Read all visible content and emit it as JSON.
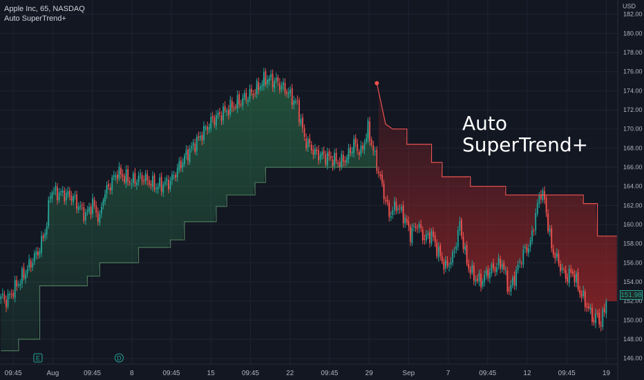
{
  "legend": {
    "symbol_line": "Apple Inc, 65, NASDAQ",
    "indicator": "Auto SuperTrend+"
  },
  "overlay_title": {
    "line1": "Auto",
    "line2": "SuperTrend+"
  },
  "price_axis": {
    "currency": "USD",
    "last_price_label": "151.98"
  },
  "colors": {
    "background": "#131722",
    "grid": "#1f2433",
    "up": "#26a69a",
    "down": "#ef5350",
    "st_up_line": "#4c7a5a",
    "st_down_line": "#ef5350",
    "axis_text": "#b2b5be"
  },
  "chart_data": {
    "type": "candlestick",
    "title": "Apple Inc, 65, NASDAQ",
    "indicator": "Auto SuperTrend+",
    "y_ticks": [
      146,
      148,
      150,
      152,
      154,
      156,
      158,
      160,
      162,
      164,
      166,
      168,
      170,
      172,
      174,
      176,
      178,
      180,
      182
    ],
    "y_tick_labels": [
      "146.00",
      "148.00",
      "150.00",
      "152.00",
      "154.00",
      "156.00",
      "158.00",
      "160.00",
      "162.00",
      "164.00",
      "166.00",
      "168.00",
      "170.00",
      "172.00",
      "174.00",
      "176.00",
      "178.00",
      "180.00",
      "182.00"
    ],
    "ylim": [
      145.4,
      183.5
    ],
    "x_tick_labels": [
      "09:45",
      "Aug",
      "09:45",
      "8",
      "09:45",
      "15",
      "09:45",
      "22",
      "09:45",
      "29",
      "Sep",
      "7",
      "09:45",
      "12",
      "09:45",
      "19"
    ],
    "event_markers": [
      "E",
      "D"
    ],
    "last_price": 151.98,
    "grid": true,
    "close_anchors": [
      [
        0,
        152.5
      ],
      [
        3,
        152.0
      ],
      [
        12,
        154.5
      ],
      [
        22,
        157.5
      ],
      [
        26,
        160.0
      ],
      [
        28,
        163.5
      ],
      [
        40,
        163.0
      ],
      [
        48,
        161.0
      ],
      [
        52,
        162.2
      ],
      [
        56,
        160.5
      ],
      [
        58,
        163.0
      ],
      [
        66,
        165.5
      ],
      [
        74,
        164.5
      ],
      [
        80,
        165.0
      ],
      [
        88,
        164.0
      ],
      [
        96,
        164.5
      ],
      [
        104,
        167.0
      ],
      [
        112,
        169.0
      ],
      [
        120,
        171.0
      ],
      [
        128,
        172.0
      ],
      [
        136,
        173.0
      ],
      [
        144,
        174.0
      ],
      [
        150,
        175.3
      ],
      [
        156,
        175.0
      ],
      [
        162,
        174.0
      ],
      [
        168,
        172.5
      ],
      [
        172,
        169.0
      ],
      [
        178,
        167.5
      ],
      [
        186,
        167.0
      ],
      [
        192,
        166.5
      ],
      [
        196,
        167.0
      ],
      [
        200,
        168.5
      ],
      [
        204,
        167.5
      ],
      [
        208,
        170.0
      ],
      [
        212,
        167.0
      ],
      [
        216,
        164.0
      ],
      [
        220,
        161.0
      ],
      [
        224,
        162.0
      ],
      [
        228,
        161.0
      ],
      [
        232,
        159.0
      ],
      [
        236,
        160.0
      ],
      [
        240,
        158.5
      ],
      [
        244,
        159.0
      ],
      [
        248,
        157.0
      ],
      [
        252,
        155.5
      ],
      [
        256,
        156.5
      ],
      [
        260,
        160.0
      ],
      [
        264,
        156.0
      ],
      [
        268,
        154.5
      ],
      [
        272,
        154.0
      ],
      [
        276,
        155.0
      ],
      [
        280,
        155.5
      ],
      [
        284,
        156.0
      ],
      [
        288,
        153.0
      ],
      [
        292,
        155.0
      ],
      [
        296,
        157.0
      ],
      [
        300,
        158.0
      ],
      [
        304,
        162.0
      ],
      [
        306,
        163.5
      ],
      [
        308,
        162.5
      ],
      [
        312,
        157.5
      ],
      [
        316,
        156.0
      ],
      [
        320,
        154.5
      ],
      [
        324,
        155.0
      ],
      [
        328,
        153.0
      ],
      [
        332,
        151.5
      ],
      [
        336,
        150.0
      ],
      [
        338,
        150.5
      ],
      [
        340,
        149.5
      ],
      [
        343,
        151.98
      ]
    ],
    "supertrend": [
      {
        "direction": "up",
        "points": [
          [
            0,
            146.8
          ],
          [
            10,
            146.8
          ],
          [
            10,
            148.0
          ],
          [
            22,
            148.0
          ],
          [
            22,
            153.6
          ],
          [
            49,
            153.6
          ],
          [
            49,
            154.6
          ],
          [
            56,
            154.6
          ],
          [
            56,
            156.0
          ],
          [
            78,
            156.0
          ],
          [
            78,
            157.6
          ],
          [
            96,
            157.6
          ],
          [
            96,
            158.4
          ],
          [
            104,
            158.4
          ],
          [
            104,
            160.3
          ],
          [
            122,
            160.3
          ],
          [
            122,
            161.9
          ],
          [
            128,
            161.9
          ],
          [
            128,
            163.1
          ],
          [
            144,
            163.1
          ],
          [
            144,
            164.4
          ],
          [
            150,
            164.4
          ],
          [
            150,
            166.0
          ],
          [
            213,
            166.0
          ]
        ]
      },
      {
        "direction": "down",
        "points": [
          [
            213,
            174.8
          ],
          [
            218,
            170.5
          ],
          [
            222,
            170.0
          ],
          [
            230,
            170.0
          ],
          [
            230,
            168.4
          ],
          [
            244,
            168.4
          ],
          [
            244,
            166.5
          ],
          [
            250,
            166.5
          ],
          [
            250,
            165.0
          ],
          [
            266,
            165.0
          ],
          [
            266,
            164.0
          ],
          [
            286,
            164.0
          ],
          [
            286,
            163.1
          ],
          [
            330,
            163.1
          ],
          [
            330,
            162.2
          ],
          [
            338,
            162.2
          ],
          [
            338,
            158.8
          ],
          [
            349,
            158.8
          ]
        ]
      }
    ]
  }
}
